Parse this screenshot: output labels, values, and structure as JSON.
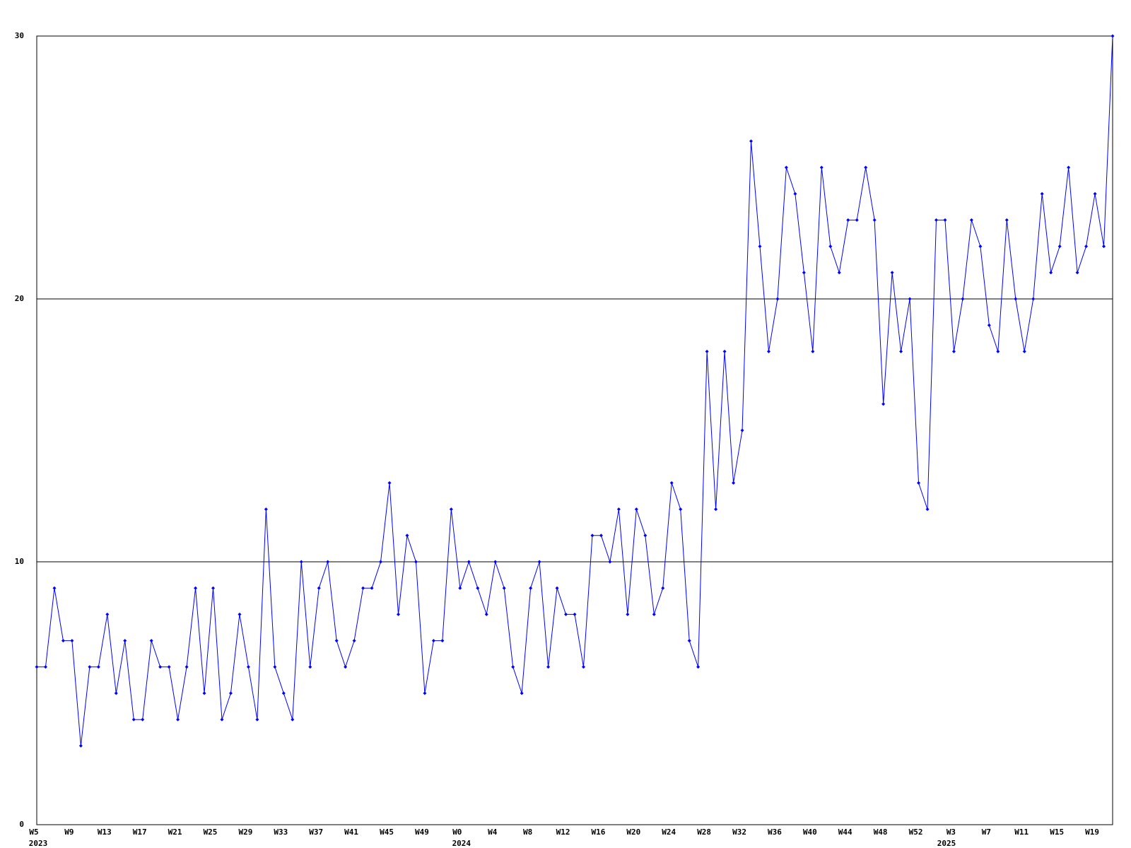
{
  "chart_data": {
    "type": "line",
    "categories": [
      "W5",
      null,
      null,
      null,
      "W9",
      null,
      null,
      null,
      "W13",
      null,
      null,
      null,
      "W17",
      null,
      null,
      null,
      "W21",
      null,
      null,
      null,
      "W25",
      null,
      null,
      null,
      "W29",
      null,
      null,
      null,
      "W33",
      null,
      null,
      null,
      "W37",
      null,
      null,
      null,
      "W41",
      null,
      null,
      null,
      "W45",
      null,
      null,
      null,
      "W49",
      null,
      null,
      null,
      "W0",
      null,
      null,
      null,
      "W4",
      null,
      null,
      null,
      "W8",
      null,
      null,
      null,
      "W12",
      null,
      null,
      null,
      "W16",
      null,
      null,
      null,
      "W20",
      null,
      null,
      null,
      "W24",
      null,
      null,
      null,
      "W28",
      null,
      null,
      null,
      "W32",
      null,
      null,
      null,
      "W36",
      null,
      null,
      null,
      "W40",
      null,
      null,
      null,
      "W44",
      null,
      null,
      null,
      "W48",
      null,
      null,
      null,
      "W52",
      null,
      null,
      null,
      "W3",
      null,
      null,
      null,
      "W7",
      null,
      null,
      null,
      "W11",
      null,
      null,
      null,
      "W15",
      null,
      null,
      null,
      "W19",
      null,
      null
    ],
    "year_labels": [
      "2023",
      null,
      null,
      null,
      null,
      null,
      null,
      null,
      null,
      null,
      null,
      null,
      null,
      null,
      null,
      null,
      null,
      null,
      null,
      null,
      null,
      null,
      null,
      null,
      null,
      null,
      null,
      null,
      null,
      null,
      null,
      null,
      null,
      null,
      null,
      null,
      null,
      null,
      null,
      null,
      null,
      null,
      null,
      null,
      null,
      null,
      null,
      null,
      "2024",
      null,
      null,
      null,
      null,
      null,
      null,
      null,
      null,
      null,
      null,
      null,
      null,
      null,
      null,
      null,
      null,
      null,
      null,
      null,
      null,
      null,
      null,
      null,
      null,
      null,
      null,
      null,
      null,
      null,
      null,
      null,
      null,
      null,
      null,
      null,
      null,
      null,
      null,
      null,
      null,
      null,
      null,
      null,
      null,
      null,
      null,
      null,
      null,
      null,
      null,
      null,
      null,
      null,
      null,
      "2025",
      null,
      null,
      null,
      null,
      null,
      null,
      null,
      null,
      null,
      null,
      null,
      null,
      null,
      null,
      null,
      null,
      null,
      null,
      null,
      null,
      null
    ],
    "series": [
      {
        "color": "#0000ff",
        "values": [
          6,
          6,
          9,
          7,
          7,
          3,
          6,
          6,
          8,
          5,
          7,
          4,
          4,
          7,
          6,
          6,
          4,
          6,
          9,
          5,
          9,
          4,
          5,
          8,
          6,
          4,
          12,
          6,
          5,
          4,
          10,
          6,
          9,
          10,
          7,
          6,
          7,
          9,
          9,
          10,
          13,
          8,
          11,
          10,
          5,
          7,
          7,
          12,
          9,
          10,
          9,
          8,
          10,
          9,
          6,
          5,
          9,
          10,
          6,
          9,
          8,
          8,
          6,
          11,
          11,
          10,
          12,
          8,
          12,
          11,
          8,
          9,
          13,
          12,
          7,
          6,
          18,
          12,
          18,
          13,
          15,
          26,
          22,
          18,
          20,
          25,
          24,
          21,
          18,
          25,
          22,
          21,
          23,
          23,
          25,
          23,
          16,
          21,
          18,
          20,
          13,
          12,
          23,
          23,
          18,
          20,
          23,
          22,
          19,
          18,
          23,
          20,
          18,
          20,
          24,
          21,
          22,
          25,
          21,
          22,
          24,
          22,
          30
        ]
      }
    ],
    "ylim": [
      0,
      30
    ],
    "yticks": [
      0,
      10,
      20,
      30
    ],
    "grid": true
  }
}
